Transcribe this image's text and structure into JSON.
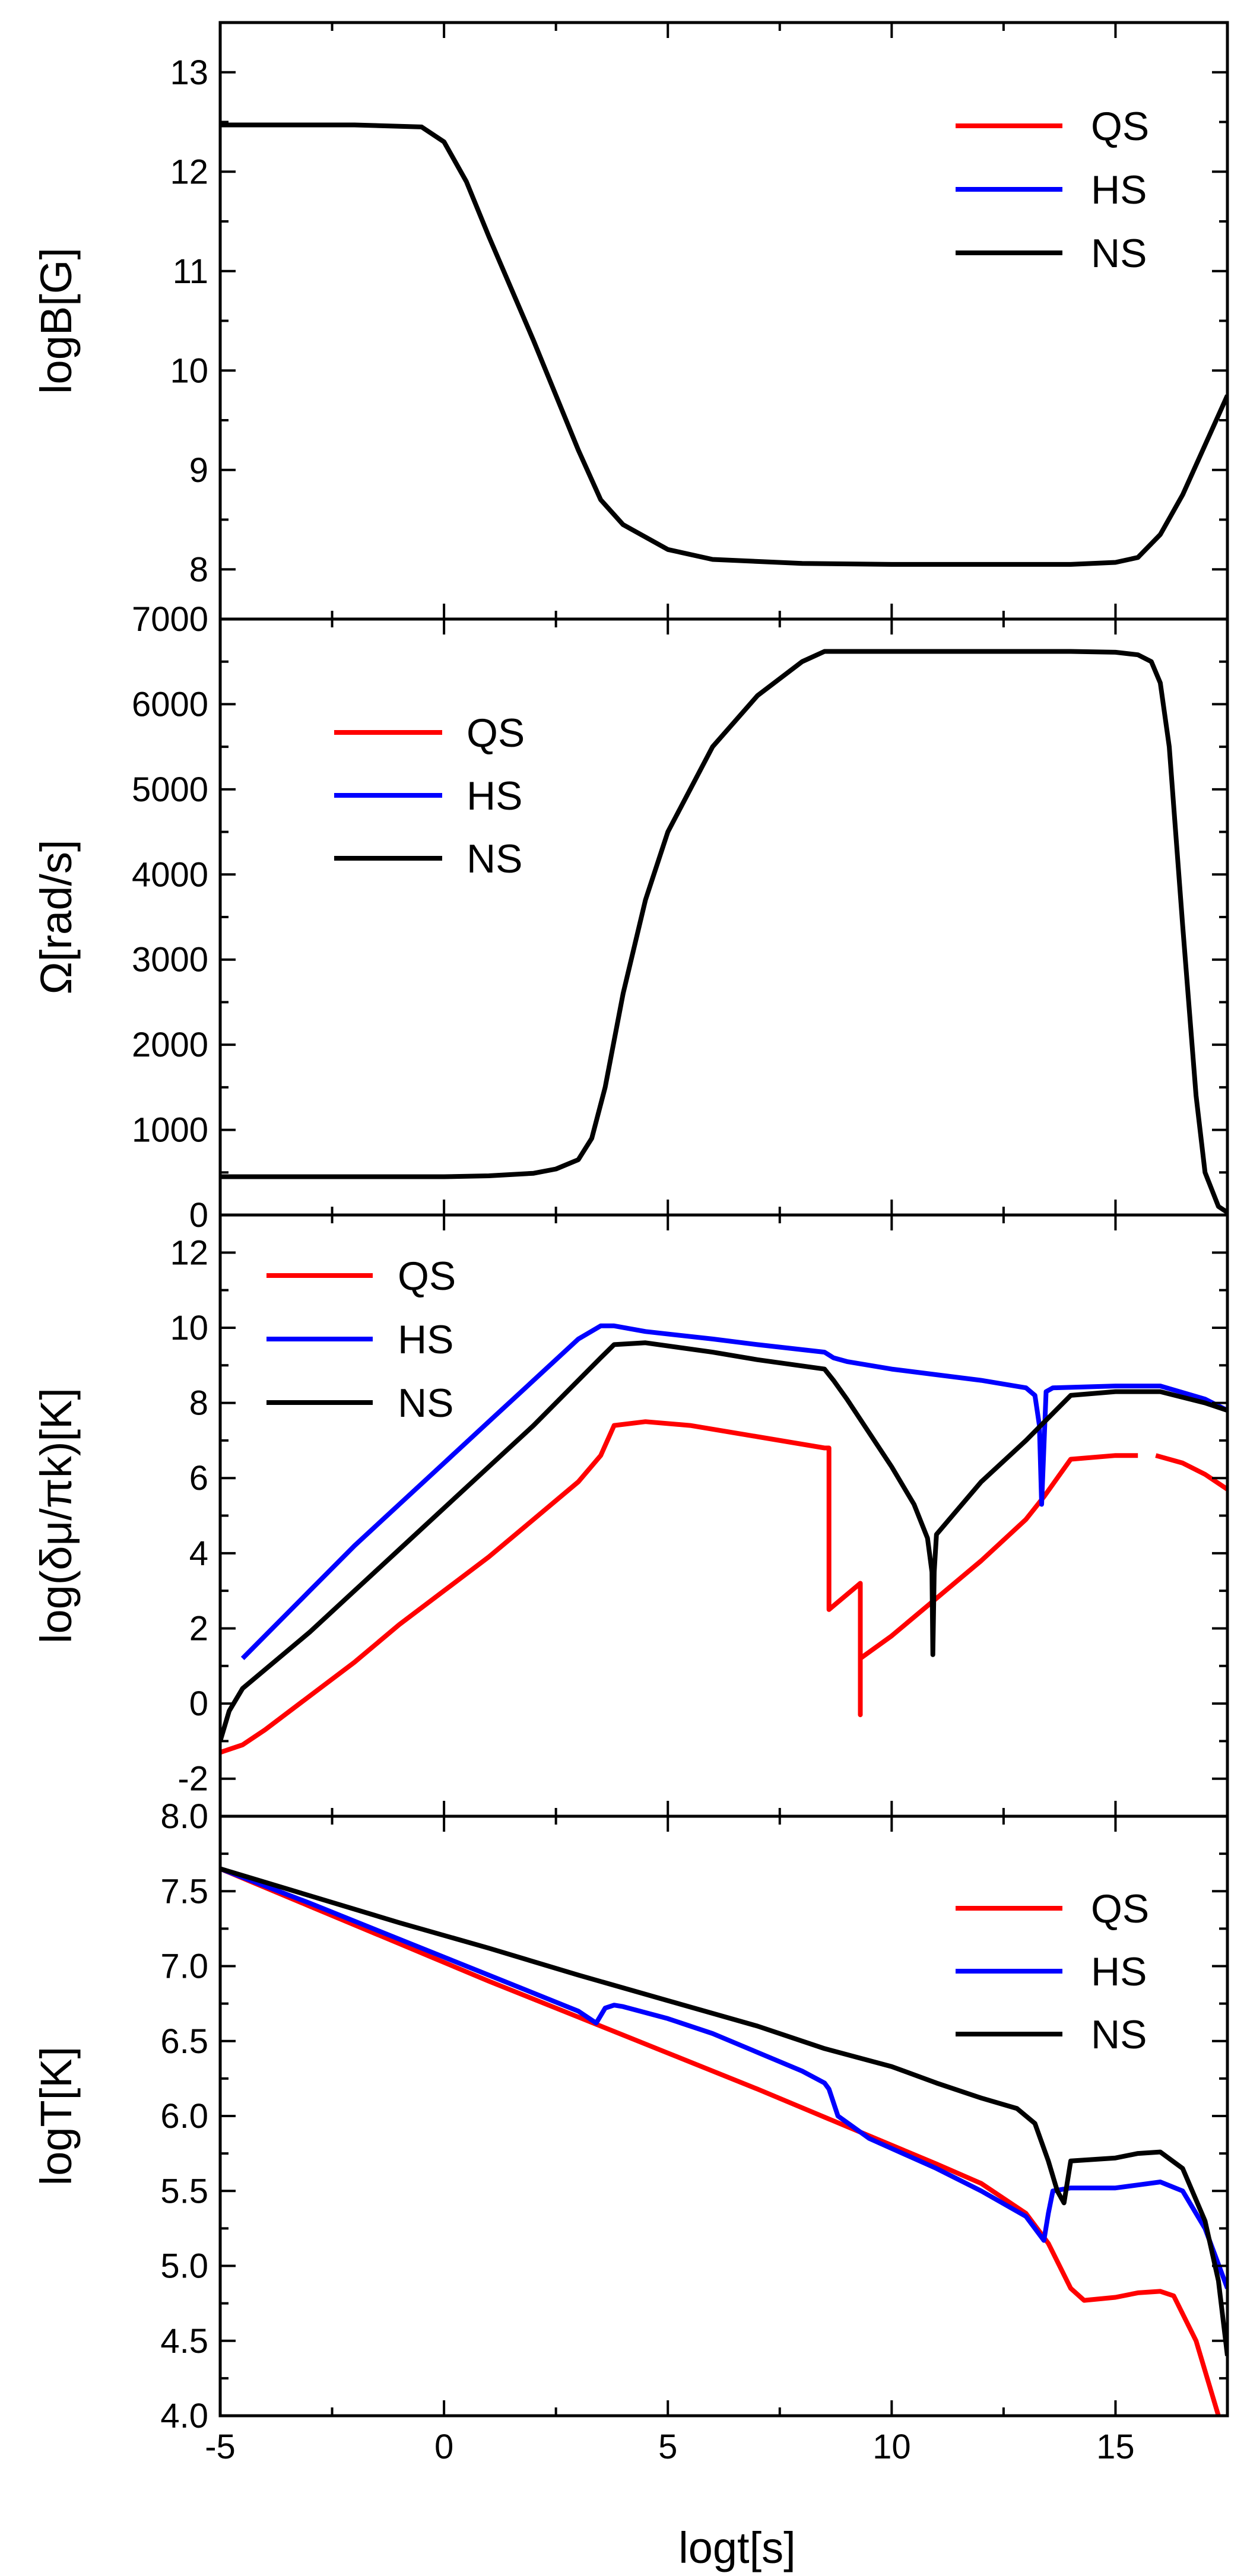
{
  "colors": {
    "QS": "#ff0000",
    "HS": "#0000ff",
    "NS": "#000000"
  },
  "shared_x_axis": {
    "label": "logt[s]",
    "range": [
      -5,
      17.5
    ],
    "ticks": [
      -5,
      0,
      5,
      10,
      15
    ],
    "tick_labels": [
      "-5",
      "0",
      "5",
      "10",
      "15"
    ]
  },
  "chart_data": [
    {
      "id": "panelB",
      "type": "line",
      "title": "",
      "xlabel": "logt[s]",
      "ylabel": "logB[G]",
      "xlim": [
        -5,
        17.5
      ],
      "ylim": [
        7.5,
        13.5
      ],
      "yticks": [
        8,
        9,
        10,
        11,
        12,
        13
      ],
      "ytick_labels": [
        "8",
        "9",
        "10",
        "11",
        "12",
        "13"
      ],
      "legend": {
        "position": "top-right",
        "entries": [
          "QS",
          "HS",
          "NS"
        ]
      },
      "series": [
        {
          "name": "QS",
          "x": [],
          "y": []
        },
        {
          "name": "HS",
          "x": [],
          "y": []
        },
        {
          "name": "NS",
          "x": [
            -5,
            -2,
            -0.5,
            0,
            0.5,
            1,
            2,
            3,
            3.5,
            4,
            5,
            6,
            8,
            10,
            12,
            14,
            15,
            15.5,
            16,
            16.5,
            17,
            17.5
          ],
          "y": [
            12.47,
            12.47,
            12.45,
            12.3,
            11.9,
            11.35,
            10.3,
            9.2,
            8.7,
            8.45,
            8.2,
            8.1,
            8.06,
            8.05,
            8.05,
            8.05,
            8.07,
            8.12,
            8.35,
            8.75,
            9.25,
            9.75
          ]
        }
      ]
    },
    {
      "id": "panelOmega",
      "type": "line",
      "title": "",
      "xlabel": "logt[s]",
      "ylabel": "Ω[rad/s]",
      "xlim": [
        -5,
        17.5
      ],
      "ylim": [
        0,
        7000
      ],
      "yticks": [
        0,
        1000,
        2000,
        3000,
        4000,
        5000,
        6000,
        7000
      ],
      "ytick_labels": [
        "0",
        "1000",
        "2000",
        "3000",
        "4000",
        "5000",
        "6000",
        "7000"
      ],
      "legend": {
        "position": "top-left",
        "entries": [
          "QS",
          "HS",
          "NS"
        ]
      },
      "series": [
        {
          "name": "QS",
          "x": [],
          "y": []
        },
        {
          "name": "HS",
          "x": [],
          "y": []
        },
        {
          "name": "NS",
          "x": [
            -5,
            0,
            1,
            2,
            2.5,
            3,
            3.3,
            3.6,
            4,
            4.5,
            5,
            6,
            7,
            8,
            8.5,
            10,
            12,
            14,
            15,
            15.5,
            15.8,
            16,
            16.2,
            16.5,
            16.8,
            17,
            17.3,
            17.5
          ],
          "y": [
            450,
            450,
            460,
            490,
            540,
            650,
            900,
            1500,
            2600,
            3700,
            4500,
            5500,
            6100,
            6500,
            6620,
            6620,
            6620,
            6620,
            6610,
            6580,
            6500,
            6250,
            5500,
            3400,
            1400,
            500,
            100,
            30
          ]
        }
      ]
    },
    {
      "id": "panelChem",
      "type": "line",
      "title": "",
      "xlabel": "logt[s]",
      "ylabel": "log(δμ/πk)[K]",
      "xlim": [
        -5,
        17.5
      ],
      "ylim": [
        -3,
        13
      ],
      "yticks": [
        -2,
        0,
        2,
        4,
        6,
        8,
        10,
        12
      ],
      "ytick_labels": [
        "-2",
        "0",
        "2",
        "4",
        "6",
        "8",
        "10",
        "12"
      ],
      "legend": {
        "position": "top-left",
        "entries": [
          "QS",
          "HS",
          "NS"
        ]
      },
      "series": [
        {
          "name": "QS",
          "x": [
            -5,
            -4.5,
            -4,
            -3,
            -2,
            -1,
            0,
            1,
            2,
            3,
            3.5,
            3.8,
            4.5,
            5.5,
            7,
            8.5,
            8.6,
            8.6,
            9.3,
            9.3,
            9.3,
            10,
            11,
            12,
            13,
            13.4,
            14,
            15,
            15.5,
            null,
            15.9,
            16.5,
            17,
            17.5
          ],
          "y": [
            -1.3,
            -1.1,
            -0.7,
            0.2,
            1.1,
            2.1,
            3,
            3.9,
            4.9,
            5.9,
            6.6,
            7.4,
            7.5,
            7.4,
            7.1,
            6.8,
            6.8,
            2.5,
            3.2,
            -0.3,
            1.2,
            1.8,
            2.8,
            3.8,
            4.9,
            5.5,
            6.5,
            6.6,
            6.6,
            null,
            6.6,
            6.4,
            6.1,
            5.7
          ]
        },
        {
          "name": "HS",
          "x": [
            -4.5,
            -4,
            -3,
            -2,
            -1,
            0,
            1,
            2,
            3,
            3.5,
            3.8,
            4.5,
            6,
            7,
            8.5,
            8.7,
            9,
            10,
            11,
            12,
            13,
            13.2,
            13.3,
            13.35,
            13.45,
            13.6,
            15,
            16,
            17,
            17.5
          ],
          "y": [
            1.2,
            1.8,
            3,
            4.2,
            5.3,
            6.4,
            7.5,
            8.6,
            9.7,
            10.05,
            10.05,
            9.9,
            9.7,
            9.55,
            9.35,
            9.2,
            9.1,
            8.9,
            8.75,
            8.6,
            8.4,
            8.2,
            7.4,
            5.3,
            8.3,
            8.4,
            8.45,
            8.45,
            8.1,
            7.8
          ]
        },
        {
          "name": "NS",
          "x": [
            -5,
            -4.8,
            -4.5,
            -4,
            -3,
            -2,
            -1,
            0,
            1,
            2,
            3,
            3.5,
            3.8,
            4.5,
            6,
            7,
            8.5,
            8.7,
            9,
            9.5,
            10,
            10.5,
            10.8,
            10.9,
            10.92,
            10.95,
            11,
            11.5,
            12,
            13,
            14,
            15,
            16,
            17,
            17.5
          ],
          "y": [
            -1,
            -0.2,
            0.4,
            0.9,
            1.9,
            3,
            4.1,
            5.2,
            6.3,
            7.4,
            8.6,
            9.2,
            9.55,
            9.6,
            9.35,
            9.15,
            8.9,
            8.6,
            8.1,
            7.2,
            6.3,
            5.3,
            4.4,
            3.5,
            1.3,
            3.5,
            4.5,
            5.2,
            5.9,
            7,
            8.2,
            8.3,
            8.3,
            8,
            7.8
          ]
        }
      ]
    },
    {
      "id": "panelT",
      "type": "line",
      "title": "",
      "xlabel": "logt[s]",
      "ylabel": "logT[K]",
      "xlim": [
        -5,
        17.5
      ],
      "ylim": [
        4,
        8
      ],
      "yticks": [
        4.0,
        4.5,
        5.0,
        5.5,
        6.0,
        6.5,
        7.0,
        7.5,
        8.0
      ],
      "ytick_labels": [
        "4.0",
        "4.5",
        "5.0",
        "5.5",
        "6.0",
        "6.5",
        "7.0",
        "7.5",
        "8.0"
      ],
      "legend": {
        "position": "top-right",
        "entries": [
          "QS",
          "HS",
          "NS"
        ]
      },
      "series": [
        {
          "name": "QS",
          "x": [
            -5,
            -3,
            -1,
            1,
            3,
            5,
            7,
            9,
            11,
            12,
            13,
            13.5,
            14,
            14.3,
            15,
            15.5,
            16,
            16.3,
            16.8,
            17.3
          ],
          "y": [
            7.65,
            7.4,
            7.15,
            6.9,
            6.66,
            6.42,
            6.18,
            5.93,
            5.68,
            5.55,
            5.35,
            5.15,
            4.85,
            4.77,
            4.79,
            4.82,
            4.83,
            4.8,
            4.5,
            4.0
          ]
        },
        {
          "name": "HS",
          "x": [
            -5,
            -3,
            -1,
            1,
            3,
            3.4,
            3.6,
            3.8,
            4,
            5,
            6,
            8,
            8.5,
            8.6,
            8.8,
            9.5,
            11,
            12,
            13,
            13.4,
            13.5,
            13.6,
            14,
            15,
            15.5,
            16,
            16.5,
            17,
            17.5
          ],
          "y": [
            7.65,
            7.42,
            7.18,
            6.94,
            6.7,
            6.62,
            6.72,
            6.74,
            6.73,
            6.65,
            6.55,
            6.3,
            6.22,
            6.18,
            6.0,
            5.85,
            5.65,
            5.5,
            5.33,
            5.17,
            5.35,
            5.5,
            5.52,
            5.52,
            5.54,
            5.56,
            5.5,
            5.25,
            4.85
          ]
        },
        {
          "name": "NS",
          "x": [
            -5,
            -3,
            -1,
            1,
            3,
            5,
            7,
            8.5,
            10,
            11,
            12,
            12.8,
            13.2,
            13.5,
            13.7,
            13.85,
            14,
            14.5,
            15,
            15.5,
            16,
            16.5,
            17,
            17.3,
            17.5
          ],
          "y": [
            7.65,
            7.47,
            7.29,
            7.12,
            6.94,
            6.77,
            6.6,
            6.45,
            6.33,
            6.22,
            6.12,
            6.05,
            5.95,
            5.7,
            5.5,
            5.42,
            5.7,
            5.71,
            5.72,
            5.75,
            5.76,
            5.65,
            5.3,
            4.9,
            4.4
          ]
        }
      ]
    }
  ]
}
